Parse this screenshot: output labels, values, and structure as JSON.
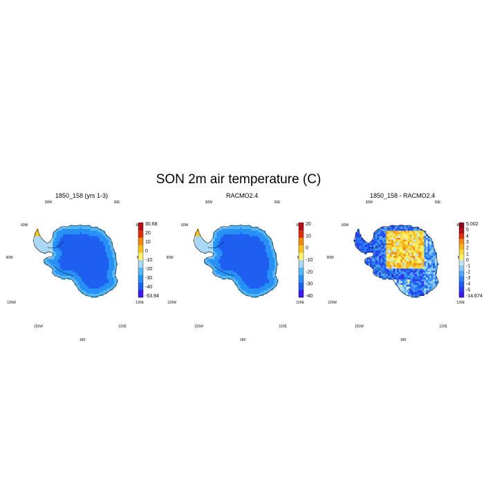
{
  "figure_title": "SON 2m air temperature (C)",
  "chart_data": [
    {
      "type": "heatmap",
      "title": "1850_158 (yrs 1-3)",
      "projection": "south polar stereographic",
      "longitude_labels": [
        "30W",
        "30E",
        "60W",
        "60E",
        "90W",
        "90E",
        "120W",
        "120E",
        "150W",
        "150E",
        "180"
      ],
      "colorbar_labels": [
        "30.68",
        "20",
        "10",
        "0",
        "-10",
        "-20",
        "-30",
        "-40",
        "-53.94"
      ],
      "colorbar_levels": [
        -53.94,
        -40,
        -30,
        -20,
        -10,
        0,
        10,
        20,
        30.68
      ],
      "colorbar_colors": [
        "#3c1af0",
        "#1e5ff0",
        "#2891f5",
        "#53b7f7",
        "#a8d8f5",
        "#fbf26d",
        "#f5c21b",
        "#f18a10",
        "#e0300f",
        "#b5101a"
      ],
      "value_range": [
        -53.94,
        30.68
      ],
      "pattern": {
        "interior": -43,
        "mid": -33,
        "coast": -22,
        "peninsula": -12,
        "peninsula_tip": 0
      }
    },
    {
      "type": "heatmap",
      "title": "RACMO2.4",
      "projection": "south polar stereographic",
      "longitude_labels": [
        "30W",
        "30E",
        "60W",
        "60E",
        "90W",
        "90E",
        "120W",
        "120E",
        "150W",
        "150E",
        "180"
      ],
      "colorbar_labels": [
        "20",
        "10",
        "0",
        "-10",
        "-20",
        "-30",
        "-40"
      ],
      "colorbar_levels": [
        -50,
        -40,
        -30,
        -20,
        -10,
        0,
        10,
        20,
        30
      ],
      "colorbar_colors": [
        "#3c1af0",
        "#1e5ff0",
        "#2891f5",
        "#53b7f7",
        "#a8d8f5",
        "#fbf26d",
        "#f5c21b",
        "#f18a10",
        "#e0300f",
        "#b5101a"
      ],
      "value_range": [
        -50,
        30
      ],
      "pattern": {
        "interior": -43,
        "mid": -33,
        "coast": -22,
        "peninsula": -12,
        "peninsula_tip": 0
      }
    },
    {
      "type": "heatmap",
      "title": "1850_158 - RACMO2.4",
      "projection": "south polar stereographic",
      "longitude_labels": [
        "30W",
        "30E",
        "60W",
        "60E",
        "90W",
        "90E",
        "120W",
        "120E",
        "150W",
        "150E",
        "180"
      ],
      "colorbar_labels": [
        "5.002",
        "5",
        "4",
        "3",
        "2",
        "1",
        "0",
        "-1",
        "-2",
        "-3",
        "-4",
        "-5",
        "-14.674"
      ],
      "colorbar_levels": [
        -14.674,
        -5,
        -4,
        -3,
        -2,
        -1,
        0,
        1,
        2,
        3,
        4,
        5,
        5.002
      ],
      "colorbar_colors": [
        "#3c1af0",
        "#2a3bf0",
        "#1e5ff0",
        "#2f80f2",
        "#53a8f5",
        "#8dcaf5",
        "#c2e4f5",
        "#fbf26d",
        "#f7d640",
        "#f5b21b",
        "#f18a10",
        "#e0300f",
        "#b5101a",
        "#8c0a1a"
      ],
      "value_range": [
        -14.674,
        5.002
      ],
      "pattern": {
        "plateau": 1.5,
        "east_coast": -2.5,
        "west": -4,
        "ross": -2,
        "peninsula": -4.5
      }
    }
  ]
}
